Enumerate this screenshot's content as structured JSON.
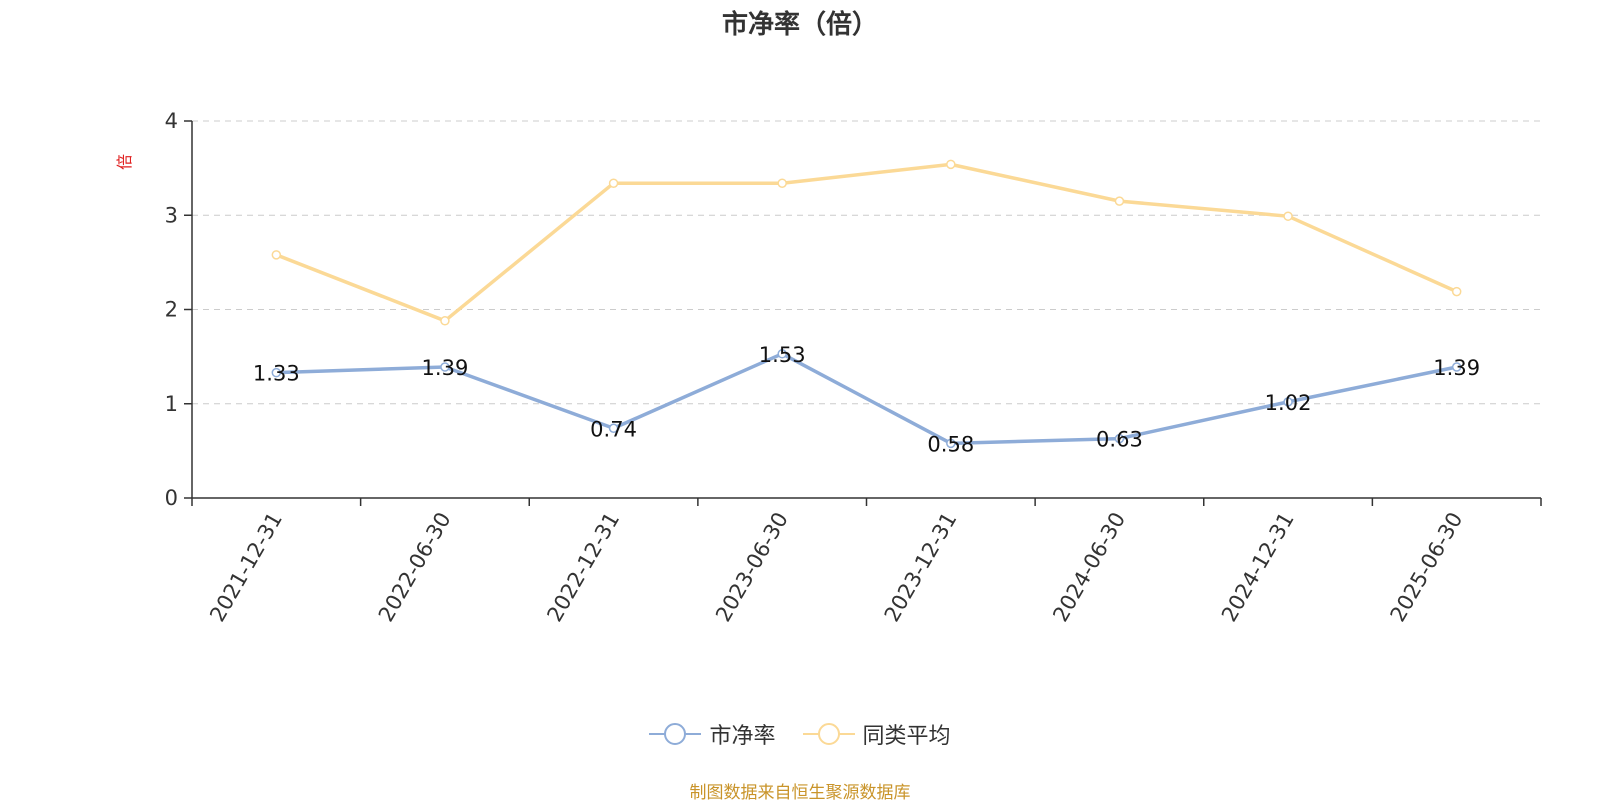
{
  "chart_data": {
    "type": "line",
    "title": "市净率（倍）",
    "ylabel": "倍",
    "ylim": [
      0,
      4
    ],
    "yticks": [
      0,
      1,
      2,
      3,
      4
    ],
    "grid": true,
    "legend_position": "bottom-center",
    "categories": [
      "2021-12-31",
      "2022-06-30",
      "2022-12-31",
      "2023-06-30",
      "2023-12-31",
      "2024-06-30",
      "2024-12-31",
      "2025-06-30"
    ],
    "series": [
      {
        "name": "市净率",
        "color": "#8eacd8",
        "values": [
          1.33,
          1.39,
          0.74,
          1.53,
          0.58,
          0.63,
          1.02,
          1.39
        ],
        "show_labels": true
      },
      {
        "name": "同类平均",
        "color": "#fbd996",
        "values": [
          2.58,
          1.88,
          3.34,
          3.34,
          3.54,
          3.15,
          2.99,
          2.19
        ],
        "show_labels": false
      }
    ]
  },
  "legend": {
    "items": [
      {
        "label": "市净率",
        "color": "#8eacd8"
      },
      {
        "label": "同类平均",
        "color": "#fbd996"
      }
    ]
  },
  "source_note": "制图数据来自恒生聚源数据库",
  "colors": {
    "axis": "#333333",
    "grid": "#cccccc",
    "ylabel": "#e02020",
    "source": "#c9942a"
  }
}
